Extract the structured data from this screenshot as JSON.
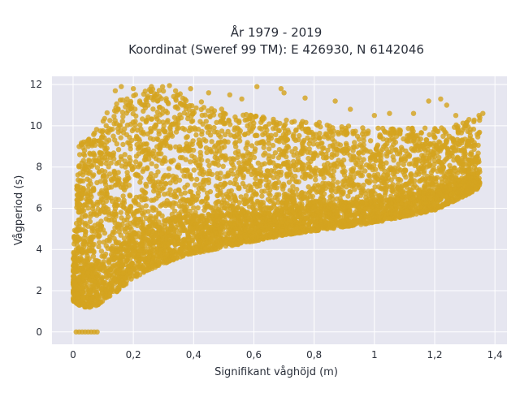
{
  "chart_data": {
    "type": "scatter",
    "title": "År 1979 - 2019",
    "subtitle": "Koordinat (Sweref 99 TM): E 426930, N 6142046",
    "xlabel": "Signifikant våghöjd (m)",
    "ylabel": "Vågperiod (s)",
    "xlim": [
      -0.07,
      1.44
    ],
    "ylim": [
      -0.6,
      12.4
    ],
    "x_ticks": [
      0,
      0.2,
      0.4,
      0.6,
      0.8,
      1,
      1.2,
      1.4
    ],
    "x_tick_labels": [
      "0",
      "0,2",
      "0,4",
      "0,6",
      "0,8",
      "1",
      "1,2",
      "1,4"
    ],
    "y_ticks": [
      0,
      2,
      4,
      6,
      8,
      10,
      12
    ],
    "y_tick_labels": [
      "0",
      "2",
      "4",
      "6",
      "8",
      "10",
      "12"
    ],
    "grid": true,
    "legend": "none",
    "colors": {
      "marker": "#d4a420",
      "plot_bg": "#e6e6f0",
      "grid": "#ffffff"
    },
    "density_envelope": {
      "h": [
        0.0,
        0.02,
        0.04,
        0.06,
        0.08,
        0.1,
        0.15,
        0.2,
        0.25,
        0.3,
        0.35,
        0.4,
        0.5,
        0.6,
        0.7,
        0.8,
        0.9,
        1.0,
        1.1,
        1.2,
        1.3,
        1.35
      ],
      "t_min": [
        1.5,
        1.3,
        1.2,
        1.2,
        1.3,
        1.5,
        2.0,
        2.6,
        3.0,
        3.3,
        3.6,
        3.8,
        4.1,
        4.4,
        4.7,
        4.9,
        5.1,
        5.3,
        5.6,
        5.9,
        6.6,
        7.0
      ],
      "t_max": [
        4.0,
        9.0,
        9.5,
        9.8,
        10.1,
        10.5,
        11.2,
        11.6,
        11.8,
        11.9,
        11.6,
        11.3,
        10.8,
        10.5,
        10.3,
        10.2,
        10.0,
        9.9,
        9.9,
        9.9,
        10.2,
        10.6
      ]
    },
    "zero_period_points": [
      [
        0.01,
        0
      ],
      [
        0.02,
        0
      ],
      [
        0.03,
        0
      ],
      [
        0.04,
        0
      ],
      [
        0.05,
        0
      ],
      [
        0.06,
        0
      ],
      [
        0.07,
        0
      ],
      [
        0.08,
        0
      ]
    ],
    "outlier_points": [
      [
        0.14,
        11.7
      ],
      [
        0.16,
        11.9
      ],
      [
        0.2,
        11.8
      ],
      [
        0.26,
        11.9
      ],
      [
        0.32,
        11.95
      ],
      [
        0.34,
        11.7
      ],
      [
        0.39,
        11.8
      ],
      [
        0.45,
        11.6
      ],
      [
        0.52,
        11.5
      ],
      [
        0.56,
        11.3
      ],
      [
        0.61,
        11.9
      ],
      [
        0.69,
        11.8
      ],
      [
        0.7,
        11.6
      ],
      [
        0.77,
        11.35
      ],
      [
        0.87,
        11.2
      ],
      [
        0.92,
        10.8
      ],
      [
        1.0,
        10.5
      ],
      [
        1.05,
        10.6
      ],
      [
        1.13,
        10.6
      ],
      [
        1.18,
        11.2
      ],
      [
        1.22,
        11.3
      ],
      [
        1.24,
        11.0
      ],
      [
        1.27,
        10.5
      ],
      [
        1.33,
        10.2
      ],
      [
        1.36,
        10.6
      ],
      [
        1.35,
        10.4
      ],
      [
        0.05,
        9.0
      ],
      [
        0.07,
        9.3
      ],
      [
        0.03,
        5.9
      ],
      [
        0.04,
        5.2
      ]
    ]
  }
}
